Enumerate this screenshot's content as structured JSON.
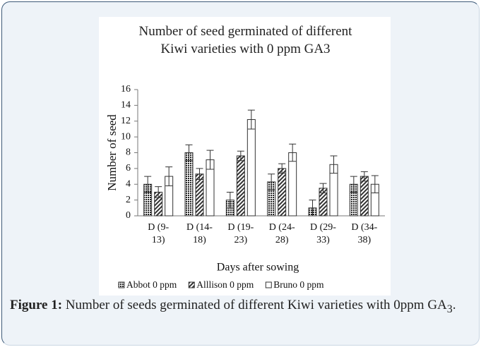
{
  "chart_data": {
    "type": "bar",
    "title": "Number of seed germinated of different Kiwi varieties with 0 ppm GA3",
    "x_label": "Days after sowing",
    "y_label": "Number of seed",
    "categories": [
      "D (9-13)",
      "D (14-18)",
      "D (19-23)",
      "D (24-28)",
      "D (29-33)",
      "D (34-38)"
    ],
    "series": [
      {
        "name": "Abbot 0 ppm",
        "color": "#222222",
        "pattern": "dots",
        "values": [
          4,
          8,
          2,
          4.3,
          1,
          4
        ],
        "errors": [
          1,
          1,
          1,
          1,
          1,
          1
        ]
      },
      {
        "name": "Alllison 0 ppm",
        "color": "#333333",
        "pattern": "hatch",
        "values": [
          3,
          5.3,
          7.6,
          6,
          3.5,
          5
        ],
        "errors": [
          0.7,
          0.7,
          0.6,
          0.6,
          0.6,
          0.6
        ]
      },
      {
        "name": "Bruno 0 ppm",
        "color": "#ffffff",
        "pattern": "none",
        "values": [
          5,
          7.1,
          12.2,
          8,
          6.5,
          4
        ],
        "errors": [
          1.2,
          1.2,
          1.2,
          1.1,
          1.1,
          1.1
        ]
      }
    ],
    "ylim": [
      0,
      16
    ],
    "yticks": [
      0,
      2,
      4,
      6,
      8,
      10,
      12,
      14,
      16
    ],
    "legend": "bottom"
  },
  "caption": {
    "label": "Figure 1:",
    "text": "Number of seeds germinated of different Kiwi varieties with 0ppm GA",
    "subscript": "3",
    "end": "."
  }
}
